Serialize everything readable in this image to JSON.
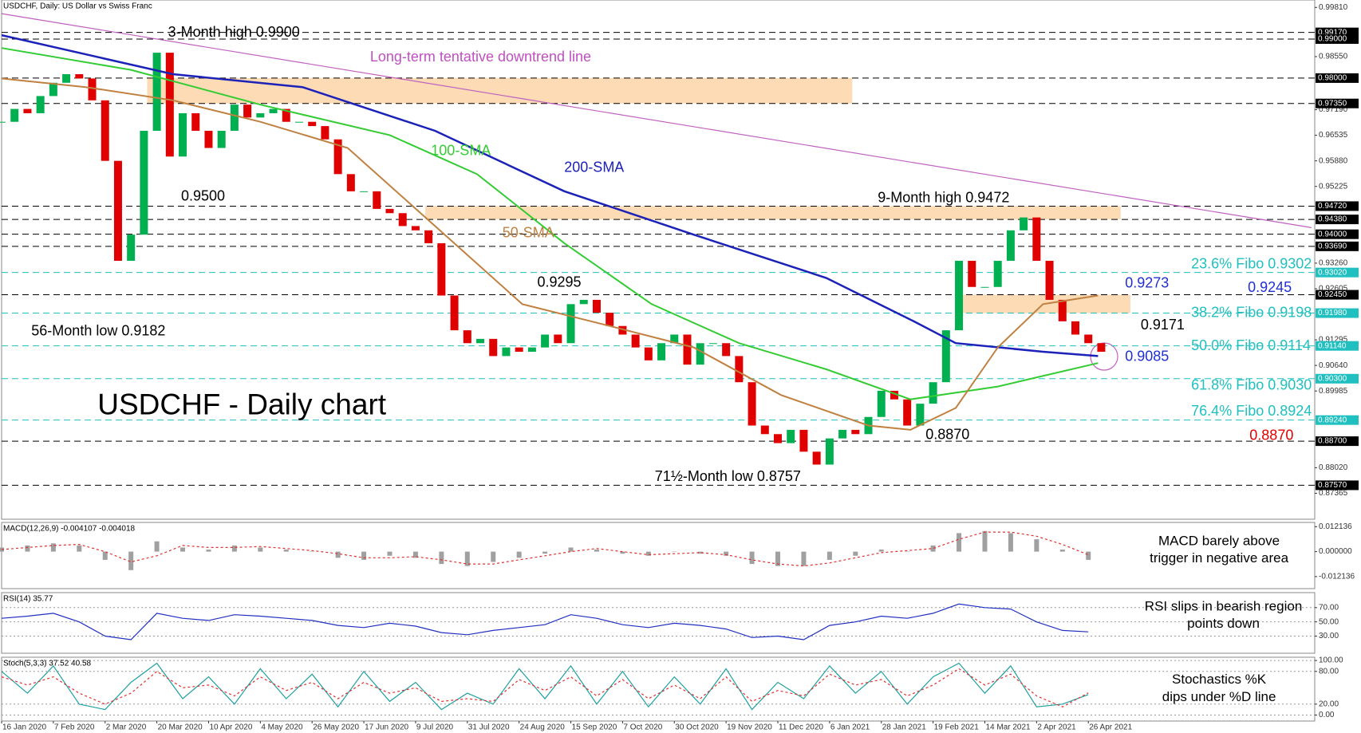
{
  "chart_data": [
    {
      "type": "candlestick",
      "header": "USDCHF, Daily:  US Dollar vs Swiss Franc",
      "title": "USDCHF - Daily chart",
      "xlim": [
        0,
        406
      ],
      "ylim": [
        0.867,
        1.0
      ],
      "up_color": "#00b050",
      "down_color": "#e00000",
      "x": [
        0,
        4,
        8,
        12,
        16,
        20,
        24,
        28,
        32,
        36,
        40,
        44,
        48,
        52,
        56,
        60,
        64,
        68,
        72,
        76,
        80,
        84,
        88,
        92,
        96,
        100,
        104,
        108,
        112,
        116,
        120,
        124,
        128,
        132,
        136,
        140,
        144,
        148,
        152,
        156,
        160,
        164,
        168,
        172,
        176,
        180,
        184,
        188,
        192,
        196,
        200,
        204,
        208,
        212,
        216,
        220,
        224,
        228,
        232,
        236,
        240,
        244,
        248,
        252,
        256,
        260,
        264,
        268,
        272,
        276,
        280,
        284,
        288,
        292,
        296,
        300,
        304,
        308,
        312,
        316,
        320,
        324,
        328,
        332,
        336,
        340
      ],
      "values": [
        0.9688,
        0.9721,
        0.971,
        0.9754,
        0.9788,
        0.981,
        0.9799,
        0.9743,
        0.9588,
        0.9332,
        0.9399,
        0.9665,
        0.9865,
        0.9599,
        0.971,
        0.9665,
        0.9621,
        0.9665,
        0.9732,
        0.9699,
        0.971,
        0.9721,
        0.9688,
        0.9688,
        0.9677,
        0.9643,
        0.9554,
        0.951,
        0.951,
        0.9465,
        0.9454,
        0.9421,
        0.941,
        0.9377,
        0.9243,
        0.9154,
        0.9121,
        0.9132,
        0.9088,
        0.911,
        0.9099,
        0.911,
        0.9143,
        0.9121,
        0.9221,
        0.9232,
        0.9199,
        0.9165,
        0.9143,
        0.911,
        0.9077,
        0.9121,
        0.9143,
        0.9066,
        0.9121,
        0.9121,
        0.9088,
        0.9021,
        0.891,
        0.8888,
        0.8865,
        0.8899,
        0.8843,
        0.881,
        0.8877,
        0.8899,
        0.8888,
        0.8932,
        0.8999,
        0.8977,
        0.891,
        0.8966,
        0.9021,
        0.9154,
        0.9332,
        0.9265,
        0.9265,
        0.9332,
        0.941,
        0.9443,
        0.9332,
        0.9232,
        0.9177,
        0.9143,
        0.9121,
        0.9099
      ],
      "series": [
        {
          "name": "200-SMA",
          "color": "#1c22b8",
          "x": [
            0,
            53,
            93,
            134,
            174,
            214,
            255,
            282,
            295,
            322,
            339
          ],
          "values": [
            0.991,
            0.981,
            0.9777,
            0.9665,
            0.951,
            0.9399,
            0.9288,
            0.9177,
            0.9121,
            0.9099,
            0.9088
          ]
        },
        {
          "name": "100-SMA",
          "color": "#33cc33",
          "x": [
            0,
            40,
            80,
            120,
            147,
            174,
            201,
            228,
            255,
            281,
            308,
            339
          ],
          "values": [
            0.9877,
            0.9821,
            0.9732,
            0.9654,
            0.9554,
            0.9377,
            0.9221,
            0.9121,
            0.9054,
            0.8977,
            0.901,
            0.907
          ]
        },
        {
          "name": "50-SMA",
          "color": "#c08040",
          "x": [
            0,
            26,
            53,
            80,
            107,
            134,
            161,
            188,
            214,
            241,
            268,
            281,
            295,
            308,
            322,
            339
          ],
          "values": [
            0.9799,
            0.9777,
            0.9743,
            0.9688,
            0.9621,
            0.9421,
            0.9221,
            0.9165,
            0.911,
            0.8988,
            0.891,
            0.8899,
            0.8955,
            0.911,
            0.9221,
            0.9243
          ]
        }
      ],
      "trendline": {
        "color": "#c060c0",
        "x": [
          0,
          405
        ],
        "y": [
          0.9965,
          0.9417
        ]
      },
      "zones": [
        {
          "color": "#fbd5a8",
          "x": [
            45,
            263
          ],
          "y": [
            0.9735,
            0.98
          ]
        },
        {
          "color": "#fbd5a8",
          "x": [
            131,
            346
          ],
          "y": [
            0.9438,
            0.9472
          ]
        },
        {
          "color": "#fbd5a8",
          "x": [
            295,
            349
          ],
          "y": [
            0.9198,
            0.9245
          ]
        }
      ],
      "yticks": [
        {
          "value": 0.9981,
          "label": "0.99810"
        },
        {
          "value": 0.9855,
          "label": "0.98550"
        },
        {
          "value": 0.9719,
          "label": "0.97190"
        },
        0.96535,
        {
          "value": 0.9588,
          "label": "0.95880"
        },
        0.95225,
        {
          "value": 0.9326,
          "label": "0.93260"
        },
        0.92605,
        0.91295,
        {
          "value": 0.9064,
          "label": "0.90640"
        },
        0.89985,
        {
          "value": 0.8802,
          "label": "0.88020"
        },
        0.87365
      ],
      "levels": [
        {
          "value": 0.9917,
          "label": "0.99170",
          "color": "#000000"
        },
        {
          "value": 0.99,
          "label": "0.99000",
          "color": "#000000"
        },
        {
          "value": 0.98,
          "label": "0.98000",
          "color": "#000000"
        },
        {
          "value": 0.9735,
          "label": "0.97350",
          "color": "#000000"
        },
        {
          "value": 0.9472,
          "label": "0.94720",
          "color": "#000000"
        },
        {
          "value": 0.9438,
          "label": "0.94380",
          "color": "#000000"
        },
        {
          "value": 0.94,
          "label": "0.94000",
          "color": "#000000"
        },
        {
          "value": 0.9369,
          "label": "0.93690",
          "color": "#000000"
        },
        {
          "value": 0.9302,
          "label": "0.93020",
          "color": "#20c0c0"
        },
        {
          "value": 0.9245,
          "label": "0.92450",
          "color": "#000000"
        },
        {
          "value": 0.9198,
          "label": "0.91980",
          "color": "#20c0c0"
        },
        {
          "value": 0.9114,
          "label": "0.91140",
          "color": "#20c0c0"
        },
        {
          "value": 0.903,
          "label": "0.90300",
          "color": "#20c0c0"
        },
        {
          "value": 0.8924,
          "label": "0.89240",
          "color": "#20c0c0"
        },
        {
          "value": 0.887,
          "label": "0.88700",
          "color": "#000000"
        },
        {
          "value": 0.8757,
          "label": "0.87570",
          "color": "#000000"
        }
      ],
      "annotations": [
        {
          "text": "3-Month high 0.9900",
          "color": "#000000"
        },
        {
          "text": "Long-term tentative downtrend line",
          "color": "#c050c0"
        },
        {
          "text": "0.9500",
          "color": "#000000"
        },
        {
          "text": "9-Month high 0.9472",
          "color": "#000000"
        },
        {
          "text": "0.9295",
          "color": "#000000"
        },
        {
          "text": "56-Month low 0.9182",
          "color": "#000000"
        },
        {
          "text": "0.8870",
          "color": "#000000"
        },
        {
          "text": "71½-Month low 0.8757",
          "color": "#000000"
        },
        {
          "text": "23.6% Fibo 0.9302",
          "color": "#20c0c0"
        },
        {
          "text": "0.9273",
          "color": "#2030d0"
        },
        {
          "text": "0.9245",
          "color": "#2030d0"
        },
        {
          "text": "38.2% Fibo 0.9198",
          "color": "#20c0c0"
        },
        {
          "text": "0.9171",
          "color": "#000000"
        },
        {
          "text": "50.0% Fibo 0.9114",
          "color": "#20c0c0"
        },
        {
          "text": "0.9085",
          "color": "#2030d0"
        },
        {
          "text": "61.8% Fibo 0.9030",
          "color": "#20c0c0"
        },
        {
          "text": "76.4% Fibo 0.8924",
          "color": "#20c0c0"
        },
        {
          "text": "0.8870",
          "color": "#e00000"
        }
      ]
    },
    {
      "type": "macd",
      "title": "MACD(12,26,9) -0.004107 -0.004018",
      "note": [
        "MACD barely above",
        "trigger in negative area"
      ],
      "xlim": [
        0,
        406
      ],
      "ylim": [
        -0.018,
        0.0142
      ],
      "yticks": [
        0.012136,
        {
          "value": 0,
          "label": "0.000000"
        },
        -0.012136
      ],
      "color": "#a0a0a0",
      "signal_color": "#e03030",
      "x": [
        0,
        8,
        16,
        24,
        32,
        40,
        48,
        56,
        64,
        72,
        80,
        88,
        96,
        104,
        112,
        120,
        128,
        136,
        144,
        152,
        160,
        168,
        176,
        184,
        192,
        200,
        208,
        216,
        224,
        232,
        240,
        248,
        256,
        264,
        272,
        280,
        288,
        296,
        304,
        312,
        320,
        328,
        336
      ],
      "values": [
        0.002,
        0.003,
        0.004,
        0.003,
        -0.004,
        -0.009,
        0.005,
        0.002,
        0.001,
        0.003,
        0.002,
        0.001,
        0.0,
        -0.003,
        -0.004,
        -0.002,
        -0.003,
        -0.006,
        -0.007,
        -0.005,
        -0.003,
        -0.001,
        0.002,
        0.001,
        -0.001,
        -0.002,
        0.0,
        -0.001,
        -0.002,
        -0.006,
        -0.007,
        -0.007,
        -0.004,
        -0.002,
        0.001,
        0.0,
        0.003,
        0.009,
        0.01,
        0.009,
        0.006,
        0.001,
        -0.004
      ],
      "signal_values": [
        0.001,
        0.002,
        0.003,
        0.0035,
        0.0,
        -0.005,
        -0.002,
        0.003,
        0.002,
        0.002,
        0.0025,
        0.0015,
        0.0005,
        -0.001,
        -0.003,
        -0.003,
        -0.0025,
        -0.004,
        -0.006,
        -0.006,
        -0.004,
        -0.002,
        0.0,
        0.0015,
        0.0,
        -0.0015,
        -0.001,
        -0.0005,
        -0.0015,
        -0.004,
        -0.006,
        -0.007,
        -0.0055,
        -0.003,
        -0.0005,
        0.0005,
        0.0015,
        0.006,
        0.0095,
        0.0095,
        0.0075,
        0.0035,
        -0.0015
      ]
    },
    {
      "type": "line",
      "title": "RSI(14) 35.77",
      "note": [
        "RSI slips in bearish region",
        "points down"
      ],
      "xlim": [
        0,
        406
      ],
      "ylim": [
        6,
        91
      ],
      "grid": true,
      "yticks": [
        {
          "value": 70,
          "label": "70.00"
        },
        {
          "value": 50,
          "label": "50.00"
        },
        {
          "value": 30,
          "label": "30.00"
        }
      ],
      "series": [
        {
          "color": "#2030c0",
          "dashed": false,
          "x": [
            0,
            8,
            16,
            24,
            32,
            40,
            48,
            56,
            64,
            72,
            80,
            88,
            96,
            104,
            112,
            120,
            128,
            136,
            144,
            152,
            160,
            168,
            176,
            184,
            192,
            200,
            208,
            216,
            224,
            232,
            240,
            248,
            256,
            264,
            272,
            280,
            288,
            296,
            304,
            312,
            320,
            328,
            336
          ],
          "values": [
            55,
            58,
            62,
            50,
            30,
            25,
            62,
            55,
            52,
            60,
            58,
            55,
            52,
            45,
            42,
            48,
            44,
            35,
            32,
            38,
            42,
            46,
            60,
            55,
            46,
            42,
            48,
            45,
            40,
            28,
            30,
            25,
            45,
            50,
            58,
            55,
            62,
            75,
            70,
            68,
            50,
            38,
            36
          ]
        }
      ]
    },
    {
      "type": "line",
      "title": "Stoch(5,3,3) 37.52 40.58",
      "note": [
        "Stochastics %K",
        "dips under %D line"
      ],
      "xlim": [
        0,
        406
      ],
      "ylim": [
        -11,
        106
      ],
      "grid": true,
      "yticks": [
        {
          "value": 100,
          "label": "100.00"
        },
        {
          "value": 80,
          "label": "80.00"
        },
        {
          "value": 20,
          "label": "20.00"
        },
        {
          "value": 0,
          "label": "0.00"
        }
      ],
      "xticks": [
        {
          "value": 0,
          "label": "16 Jan 2020"
        },
        {
          "value": 16,
          "label": "7 Feb 2020"
        },
        {
          "value": 32,
          "label": "2 Mar 2020"
        },
        {
          "value": 48,
          "label": "20 Mar 2020"
        },
        {
          "value": 64,
          "label": "10 Apr 2020"
        },
        {
          "value": 80,
          "label": "4 May 2020"
        },
        {
          "value": 96,
          "label": "26 May 2020"
        },
        {
          "value": 112,
          "label": "17 Jun 2020"
        },
        {
          "value": 128,
          "label": "9 Jul 2020"
        },
        {
          "value": 144,
          "label": "31 Jul 2020"
        },
        {
          "value": 160,
          "label": "24 Aug 2020"
        },
        {
          "value": 176,
          "label": "15 Sep 2020"
        },
        {
          "value": 192,
          "label": "7 Oct 2020"
        },
        {
          "value": 208,
          "label": "30 Oct 2020"
        },
        {
          "value": 224,
          "label": "19 Nov 2020"
        },
        {
          "value": 240,
          "label": "11 Dec 2020"
        },
        {
          "value": 256,
          "label": "6 Jan 2021"
        },
        {
          "value": 272,
          "label": "28 Jan 2021"
        },
        {
          "value": 288,
          "label": "19 Feb 2021"
        },
        {
          "value": 304,
          "label": "14 Mar 2021"
        },
        {
          "value": 320,
          "label": "2 Apr 2021"
        },
        {
          "value": 336,
          "label": "26 Apr 2021"
        }
      ],
      "series": [
        {
          "color": "#20a0a0",
          "dashed": false,
          "x": [
            0,
            8,
            16,
            24,
            32,
            40,
            48,
            56,
            64,
            72,
            80,
            88,
            96,
            104,
            112,
            120,
            128,
            136,
            144,
            152,
            160,
            168,
            176,
            184,
            192,
            200,
            208,
            216,
            224,
            232,
            240,
            248,
            256,
            264,
            272,
            280,
            288,
            296,
            304,
            312,
            320,
            328,
            336
          ],
          "values": [
            80,
            40,
            90,
            20,
            10,
            60,
            95,
            30,
            70,
            20,
            85,
            30,
            75,
            15,
            80,
            25,
            60,
            10,
            40,
            20,
            85,
            30,
            90,
            20,
            80,
            15,
            70,
            20,
            85,
            10,
            60,
            30,
            90,
            40,
            80,
            20,
            70,
            95,
            40,
            90,
            15,
            20,
            37.52
          ]
        },
        {
          "color": "#e03030",
          "dashed": true,
          "x": [
            0,
            8,
            16,
            24,
            32,
            40,
            48,
            56,
            64,
            72,
            80,
            88,
            96,
            104,
            112,
            120,
            128,
            136,
            144,
            152,
            160,
            168,
            176,
            184,
            192,
            200,
            208,
            216,
            224,
            232,
            240,
            248,
            256,
            264,
            272,
            280,
            288,
            296,
            304,
            312,
            320,
            328,
            336
          ],
          "values": [
            70,
            55,
            70,
            40,
            20,
            40,
            80,
            50,
            55,
            35,
            70,
            45,
            60,
            30,
            60,
            40,
            50,
            25,
            30,
            25,
            65,
            45,
            70,
            35,
            65,
            30,
            55,
            30,
            70,
            25,
            45,
            35,
            75,
            55,
            65,
            35,
            55,
            85,
            55,
            75,
            35,
            15,
            40.58
          ]
        }
      ]
    }
  ]
}
